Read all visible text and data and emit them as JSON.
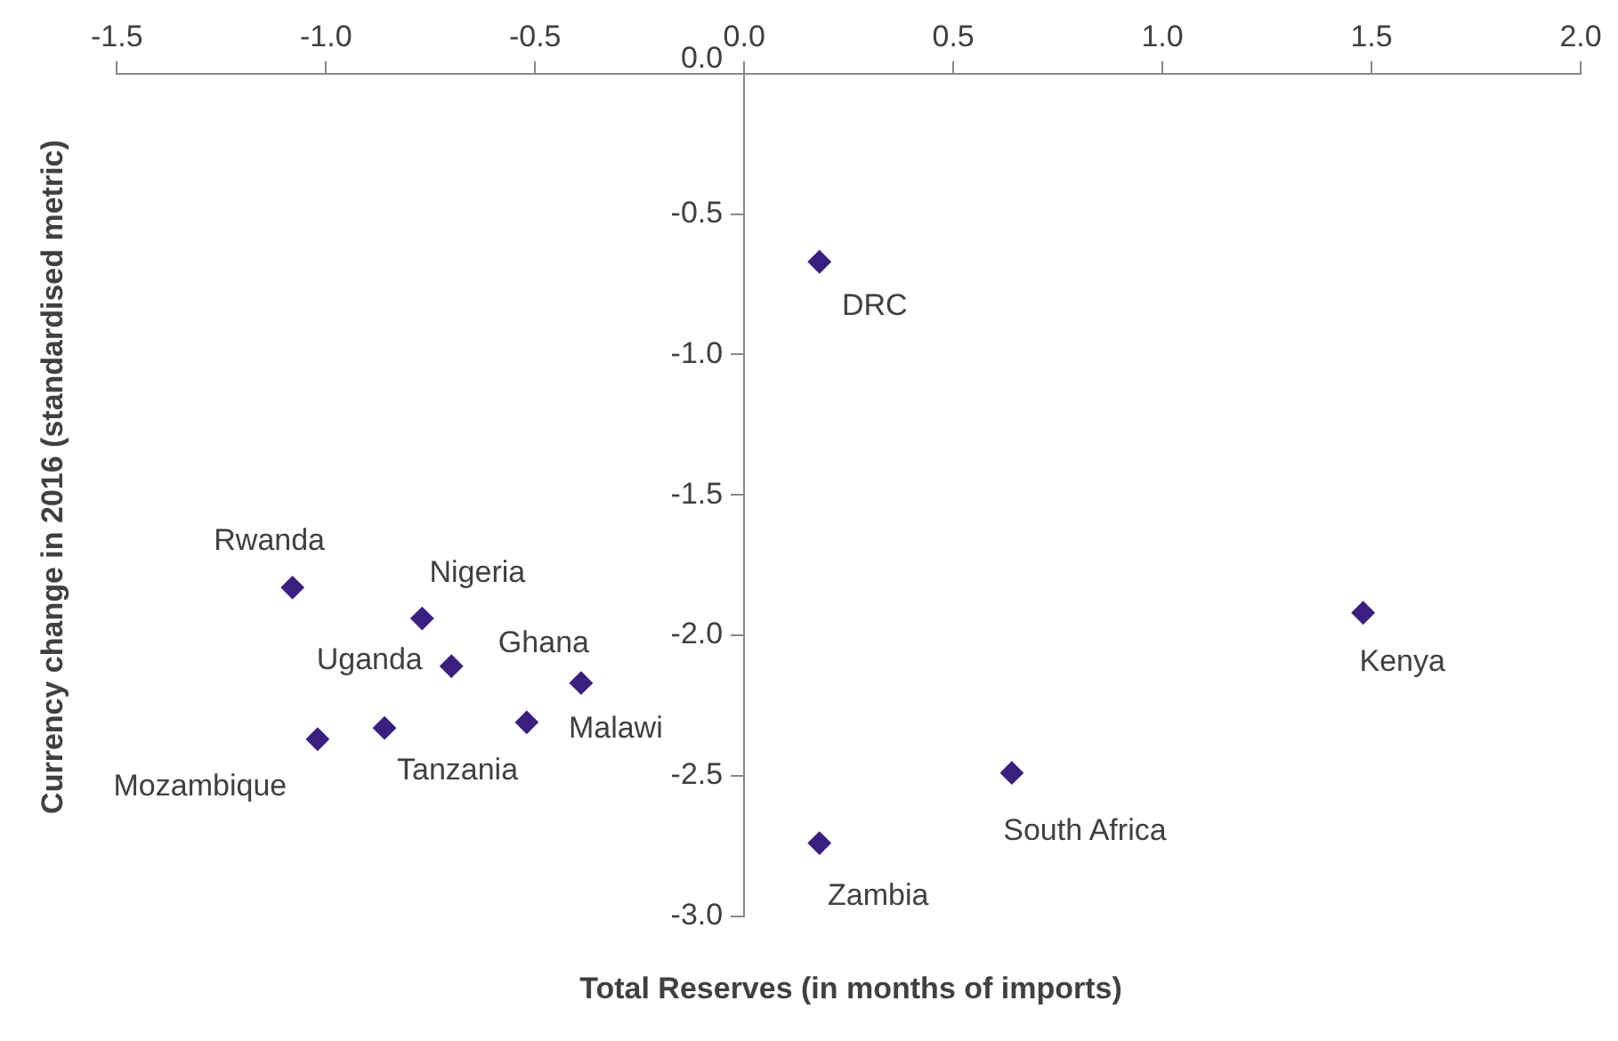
{
  "chart_data": {
    "type": "scatter",
    "xlabel": "Total Reserves (in months of imports)",
    "ylabel": "Currency change in 2016 (standardised metric)",
    "x": [
      0.18,
      -1.08,
      -0.77,
      -0.7,
      -0.39,
      -0.52,
      -0.86,
      -1.02,
      0.18,
      0.64,
      1.48
    ],
    "series": [
      {
        "color": "#3b1f80",
        "values": [
          -0.67,
          -1.83,
          -1.94,
          -2.11,
          -2.17,
          -2.31,
          -2.33,
          -2.37,
          -2.74,
          -2.49,
          -1.92
        ]
      }
    ],
    "annotations": [
      {
        "text": "DRC",
        "x": 0.18,
        "y": -0.67
      },
      {
        "text": "Rwanda",
        "x": -1.08,
        "y": -1.83
      },
      {
        "text": "Nigeria",
        "x": -0.77,
        "y": -1.94
      },
      {
        "text": "Uganda",
        "x": -0.7,
        "y": -2.11
      },
      {
        "text": "Ghana",
        "x": -0.39,
        "y": -2.17
      },
      {
        "text": "Malawi",
        "x": -0.52,
        "y": -2.31
      },
      {
        "text": "Tanzania",
        "x": -0.86,
        "y": -2.33
      },
      {
        "text": "Mozambique",
        "x": -1.02,
        "y": -2.37
      },
      {
        "text": "Zambia",
        "x": 0.18,
        "y": -2.74
      },
      {
        "text": "South Africa",
        "x": 0.64,
        "y": -2.49
      },
      {
        "text": "Kenya",
        "x": 1.48,
        "y": -1.92
      }
    ],
    "xlim": [
      -1.5,
      2.0
    ],
    "xticks": [
      {
        "value": -1.5,
        "label": "-1.5"
      },
      {
        "value": -1,
        "label": "-1.0"
      },
      {
        "value": -0.5,
        "label": "-0.5"
      },
      {
        "value": 0,
        "label": "0.0"
      },
      {
        "value": 0.5,
        "label": "0.5"
      },
      {
        "value": 1,
        "label": "1.0"
      },
      {
        "value": 1.5,
        "label": "1.5"
      },
      {
        "value": 2,
        "label": "2.0"
      }
    ],
    "ylim": [
      -3.0,
      0.0
    ],
    "yticks": [
      {
        "value": -3,
        "label": "-3.0"
      },
      {
        "value": -2.5,
        "label": "-2.5"
      },
      {
        "value": -2,
        "label": "-2.0"
      },
      {
        "value": -1.5,
        "label": "-1.5"
      },
      {
        "value": -1,
        "label": "-1.0"
      },
      {
        "value": -0.5,
        "label": "-0.5"
      },
      {
        "value": 0,
        "label": "0.0"
      }
    ],
    "grid": false,
    "legend": false,
    "marker": "diamond"
  }
}
